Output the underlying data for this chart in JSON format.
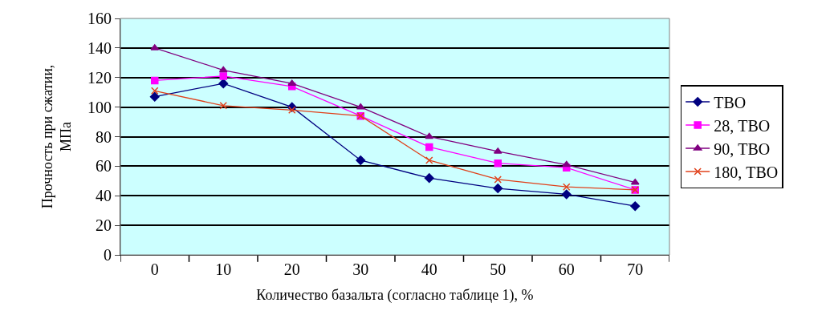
{
  "chart_data": {
    "type": "line",
    "xlabel": "Количество базальта (согласно таблице 1), %",
    "ylabel": "Прочность при сжатии,\nМПа",
    "categories": [
      "0",
      "10",
      "20",
      "30",
      "40",
      "50",
      "60",
      "70"
    ],
    "series": [
      {
        "name": "ТВО",
        "color": "#000080",
        "marker": "diamond",
        "values": [
          107,
          116,
          100,
          64,
          52,
          45,
          41,
          33
        ]
      },
      {
        "name": "28, ТВО",
        "color": "#ff00ff",
        "marker": "square",
        "values": [
          118,
          121,
          114,
          94,
          73,
          62,
          59,
          44
        ]
      },
      {
        "name": "90, ТВО",
        "color": "#800080",
        "marker": "triangle",
        "values": [
          140,
          125,
          116,
          100,
          80,
          70,
          61,
          49
        ]
      },
      {
        "name": "180, ТВО",
        "color": "#e0401a",
        "marker": "cross",
        "values": [
          111,
          101,
          98,
          94,
          64,
          51,
          46,
          44
        ]
      }
    ],
    "ylim": [
      0,
      160
    ],
    "yticks": [
      0,
      20,
      40,
      60,
      80,
      100,
      120,
      140,
      160
    ],
    "grid": "y",
    "legend": "right",
    "line_style": "solid"
  }
}
